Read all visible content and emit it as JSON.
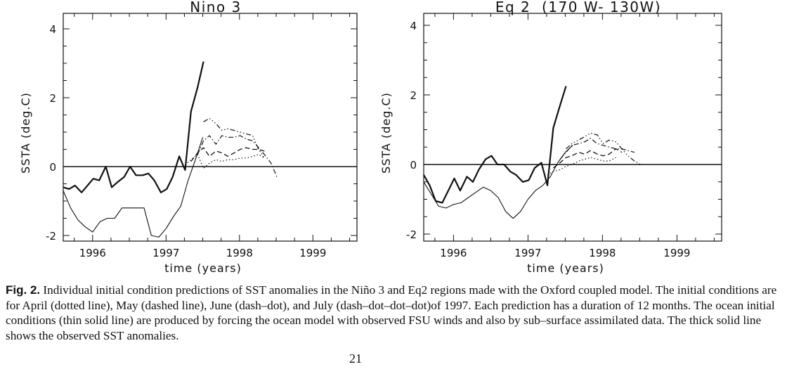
{
  "chart_data": [
    {
      "type": "line",
      "title": "Nino 3",
      "xlabel": "time (years)",
      "ylabel": "SSTA (deg.C)",
      "xlim": [
        1995.6,
        1999.6
      ],
      "ylim": [
        -2,
        4.2
      ],
      "xticks": [
        1996,
        1997,
        1998,
        1999
      ],
      "yticks": [
        -2,
        0,
        2,
        4
      ],
      "series": [
        {
          "style": "thick-solid",
          "x": [
            1995.6,
            1995.68,
            1995.76,
            1995.85,
            1995.93,
            1996.01,
            1996.09,
            1996.18,
            1996.26,
            1996.34,
            1996.43,
            1996.51,
            1996.59,
            1996.68,
            1996.76,
            1996.84,
            1996.93,
            1997.01,
            1997.09,
            1997.18,
            1997.26,
            1997.34,
            1997.43,
            1997.51
          ],
          "y": [
            -0.6,
            -0.65,
            -0.55,
            -0.75,
            -0.55,
            -0.35,
            -0.4,
            0.0,
            -0.6,
            -0.45,
            -0.3,
            0.0,
            -0.25,
            -0.25,
            -0.2,
            -0.4,
            -0.75,
            -0.65,
            -0.3,
            0.3,
            -0.1,
            1.6,
            2.3,
            3.05
          ]
        },
        {
          "style": "thin-solid",
          "x": [
            1995.6,
            1995.7,
            1995.8,
            1995.9,
            1996.0,
            1996.1,
            1996.2,
            1996.3,
            1996.4,
            1996.5,
            1996.6,
            1996.7,
            1996.8,
            1996.9,
            1997.0,
            1997.1,
            1997.2,
            1997.3,
            1997.4,
            1997.5
          ],
          "y": [
            -0.7,
            -1.2,
            -1.55,
            -1.75,
            -1.9,
            -1.6,
            -1.5,
            -1.5,
            -1.2,
            -1.2,
            -1.2,
            -1.2,
            -2.0,
            -2.05,
            -1.8,
            -1.45,
            -1.15,
            -0.4,
            0.2,
            0.85
          ]
        },
        {
          "style": "dotted",
          "x": [
            1997.26,
            1997.34,
            1997.43,
            1997.51,
            1997.59,
            1997.68,
            1997.76,
            1997.84,
            1997.93,
            1998.01,
            1998.09,
            1998.18,
            1998.26,
            1998.34
          ],
          "y": [
            0.05,
            0.2,
            0.35,
            -0.05,
            0.1,
            0.2,
            0.15,
            0.2,
            0.2,
            0.25,
            0.25,
            0.3,
            0.35,
            0.25
          ]
        },
        {
          "style": "dashed",
          "x": [
            1997.34,
            1997.43,
            1997.51,
            1997.59,
            1997.68,
            1997.76,
            1997.84,
            1997.93,
            1998.01,
            1998.09,
            1998.18,
            1998.26,
            1998.34
          ],
          "y": [
            0.15,
            0.4,
            0.55,
            0.3,
            0.45,
            0.4,
            0.3,
            0.4,
            0.5,
            0.55,
            0.5,
            0.5,
            0.45
          ]
        },
        {
          "style": "dash-dot",
          "x": [
            1997.43,
            1997.51,
            1997.59,
            1997.68,
            1997.76,
            1997.84,
            1997.93,
            1998.01,
            1998.09,
            1998.18,
            1998.26,
            1998.34,
            1998.43,
            1998.51
          ],
          "y": [
            0.35,
            0.75,
            0.9,
            0.65,
            0.9,
            0.85,
            0.85,
            0.9,
            0.8,
            0.75,
            0.55,
            0.35,
            0.1,
            -0.3
          ]
        },
        {
          "style": "dash-dot-dot-dot",
          "x": [
            1997.51,
            1997.59,
            1997.68,
            1997.76,
            1997.84,
            1997.93,
            1998.01,
            1998.09,
            1998.18,
            1998.26,
            1998.34
          ],
          "y": [
            1.3,
            1.4,
            1.25,
            1.05,
            1.1,
            1.05,
            1.0,
            0.95,
            0.9,
            0.5,
            0.25
          ]
        }
      ]
    },
    {
      "type": "line",
      "title": "Eq 2  (170 W- 130W)",
      "xlabel": "time (years)",
      "ylabel": "SSTA (deg.C)",
      "xlim": [
        1995.6,
        1999.6
      ],
      "ylim": [
        -2,
        4.2
      ],
      "xticks": [
        1996,
        1997,
        1998,
        1999
      ],
      "yticks": [
        -2,
        0,
        2,
        4
      ],
      "series": [
        {
          "style": "thick-solid",
          "x": [
            1995.6,
            1995.68,
            1995.76,
            1995.85,
            1995.93,
            1996.01,
            1996.09,
            1996.18,
            1996.26,
            1996.34,
            1996.43,
            1996.51,
            1996.59,
            1996.68,
            1996.76,
            1996.84,
            1996.93,
            1997.01,
            1997.09,
            1997.18,
            1997.26,
            1997.34,
            1997.43,
            1997.51
          ],
          "y": [
            -0.3,
            -0.6,
            -1.05,
            -1.1,
            -0.75,
            -0.4,
            -0.75,
            -0.35,
            -0.5,
            -0.15,
            0.15,
            0.25,
            0.0,
            0.0,
            -0.2,
            -0.3,
            -0.5,
            -0.45,
            -0.1,
            0.05,
            -0.6,
            1.05,
            1.7,
            2.25
          ]
        },
        {
          "style": "thin-solid",
          "x": [
            1995.6,
            1995.7,
            1995.8,
            1995.9,
            1996.0,
            1996.1,
            1996.2,
            1996.3,
            1996.4,
            1996.5,
            1996.6,
            1996.7,
            1996.8,
            1996.9,
            1997.0,
            1997.1,
            1997.2,
            1997.3,
            1997.4,
            1997.5,
            1997.6
          ],
          "y": [
            -0.5,
            -0.85,
            -1.2,
            -1.25,
            -1.15,
            -1.1,
            -0.95,
            -0.8,
            -0.65,
            -0.75,
            -0.95,
            -1.35,
            -1.55,
            -1.35,
            -1.0,
            -0.75,
            -0.6,
            -0.35,
            0.05,
            0.35,
            0.55
          ]
        },
        {
          "style": "dotted",
          "x": [
            1997.26,
            1997.34,
            1997.43,
            1997.51,
            1997.59,
            1997.68,
            1997.76,
            1997.84,
            1997.93,
            1998.01,
            1998.09,
            1998.18
          ],
          "y": [
            -0.3,
            -0.2,
            -0.15,
            -0.05,
            0.0,
            0.1,
            0.15,
            0.2,
            0.15,
            0.1,
            0.1,
            0.2
          ]
        },
        {
          "style": "dashed",
          "x": [
            1997.34,
            1997.43,
            1997.51,
            1997.59,
            1997.68,
            1997.76,
            1997.84,
            1997.93,
            1998.01,
            1998.09,
            1998.18,
            1998.26
          ],
          "y": [
            -0.1,
            0.05,
            0.2,
            0.25,
            0.35,
            0.3,
            0.4,
            0.3,
            0.25,
            0.3,
            0.45,
            0.35
          ]
        },
        {
          "style": "dash-dot",
          "x": [
            1997.43,
            1997.51,
            1997.59,
            1997.68,
            1997.76,
            1997.84,
            1997.93,
            1998.01,
            1998.09,
            1998.18,
            1998.26,
            1998.34,
            1998.43
          ],
          "y": [
            0.15,
            0.35,
            0.55,
            0.6,
            0.65,
            0.75,
            0.6,
            0.55,
            0.5,
            0.45,
            0.45,
            0.4,
            0.35
          ]
        },
        {
          "style": "dash-dot-dot-dot",
          "x": [
            1997.51,
            1997.59,
            1997.68,
            1997.76,
            1997.84,
            1997.93,
            1998.01,
            1998.09,
            1998.18,
            1998.26,
            1998.34,
            1998.43,
            1998.51
          ],
          "y": [
            0.45,
            0.6,
            0.7,
            0.8,
            0.9,
            0.85,
            0.6,
            0.7,
            0.65,
            0.45,
            0.25,
            0.1,
            0.0
          ]
        }
      ]
    }
  ],
  "caption": {
    "fig_label": "Fig. 2.",
    "text": " Individual initial condition predictions of SST anomalies in the Niño 3 and Eq2 regions made with the Oxford coupled model. The initial conditions are for April (dotted line), May (dashed line), June (dash–dot), and July (dash–dot–dot–dot)of 1997. Each prediction has a duration of 12 months. The ocean initial conditions (thin solid line) are produced by forcing the ocean model with observed FSU winds and also by sub–surface assimilated data. The thick solid line shows the observed SST anomalies."
  },
  "page_number": "21"
}
